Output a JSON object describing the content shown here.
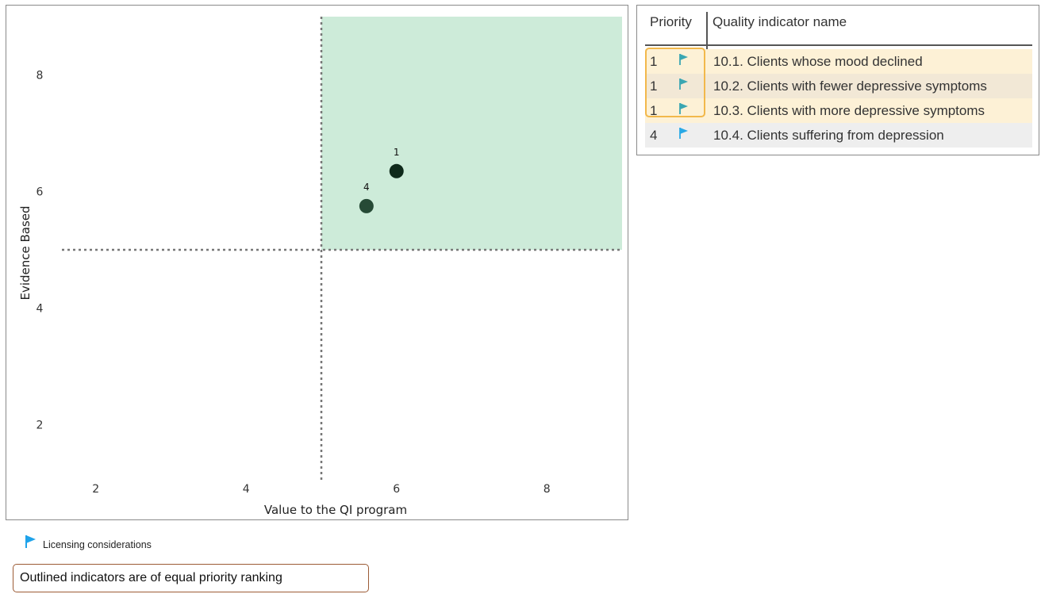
{
  "chart_data": {
    "type": "scatter",
    "xlabel": "Value to the QI program",
    "ylabel": "Evidence Based",
    "xlim": [
      1,
      9
    ],
    "ylim": [
      1,
      9
    ],
    "x_ticks": [
      2,
      4,
      6,
      8
    ],
    "y_ticks": [
      2,
      4,
      6,
      8
    ],
    "threshold_x": 5,
    "threshold_y": 5,
    "highlight_quadrant": {
      "x": [
        5,
        9
      ],
      "y": [
        5,
        9
      ],
      "color": "#cdebd9"
    },
    "grid": false,
    "points": [
      {
        "label": "1",
        "x": 6.0,
        "y": 6.35,
        "color": "#0f2a1b"
      },
      {
        "label": "4",
        "x": 5.6,
        "y": 5.75,
        "color": "#264a36"
      }
    ]
  },
  "table": {
    "header_priority": "Priority",
    "header_name": "Quality indicator name",
    "flag_color_teal": "#3aa6b2",
    "flag_color_blue": "#29a9e6",
    "rows": [
      {
        "priority": "1",
        "name": "10.1. Clients whose mood declined",
        "flag": "flag-icon-teal",
        "bg": "#fdf1d6"
      },
      {
        "priority": "1",
        "name": "10.2. Clients with fewer depressive symptoms",
        "flag": "flag-icon-teal",
        "bg": "#f2e8d6"
      },
      {
        "priority": "1",
        "name": "10.3. Clients with more depressive symptoms",
        "flag": "flag-icon-teal",
        "bg": "#fdf1d6"
      },
      {
        "priority": "4",
        "name": "10.4. Clients suffering from depression",
        "flag": "flag-icon-blue",
        "bg": "#eeeeee"
      }
    ]
  },
  "legend": {
    "label": "Licensing considerations",
    "icon": "flag-icon",
    "color": "#1fa3ea"
  },
  "note": {
    "text": "Outlined indicators are of equal priority ranking",
    "border_color": "#9c5b35"
  }
}
